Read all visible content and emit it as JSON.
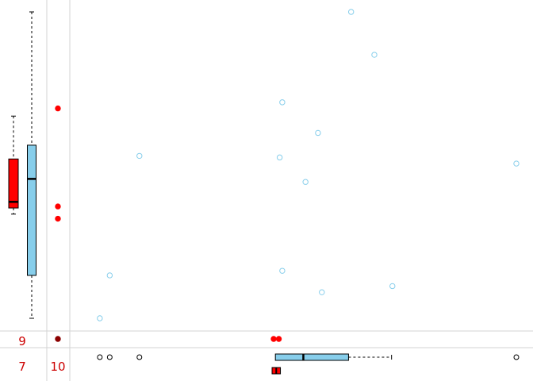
{
  "chart_data": {
    "type": "scatter",
    "title": "",
    "xlabel": "",
    "ylabel": "",
    "xlim": [
      0,
      100
    ],
    "ylim": [
      0,
      100
    ],
    "grid": false,
    "legend": "none",
    "colors": {
      "red": "#ff0000",
      "dark_red": "#8b0000",
      "sky": "#87ceeb",
      "divider": "#d3d3d3",
      "count_text": "#cc0000"
    },
    "series": [
      {
        "color": "#87ceeb",
        "shape": "open-circle",
        "points": [
          {
            "x": 61.6,
            "y": 100
          },
          {
            "x": 67.0,
            "y": 86.0
          },
          {
            "x": 45.6,
            "y": 70.5
          },
          {
            "x": 53.9,
            "y": 60.5
          },
          {
            "x": 12.4,
            "y": 53.0
          },
          {
            "x": 45.0,
            "y": 52.5
          },
          {
            "x": 51.0,
            "y": 44.5
          },
          {
            "x": 100,
            "y": 50.5
          },
          {
            "x": 5.5,
            "y": 14.0
          },
          {
            "x": 45.6,
            "y": 15.5
          },
          {
            "x": 54.8,
            "y": 8.5
          },
          {
            "x": 71.2,
            "y": 10.5
          },
          {
            "x": 3.2,
            "y": 0
          }
        ]
      },
      {
        "color": "#ff0000",
        "shape": "filled-circle",
        "points": [
          {
            "x": 43.6,
            "y": 0
          },
          {
            "x": 44.8,
            "y": 0
          }
        ]
      }
    ],
    "marginal_x": {
      "count_label": "9",
      "dark_point": {
        "y": 0
      },
      "strip_points": [
        3.2,
        5.5,
        12.4,
        45.6,
        51.0,
        53.9,
        54.8,
        61.6,
        67.0,
        71.2,
        100
      ],
      "boxplot": {
        "color": "#87ceeb",
        "q1": 44.0,
        "median": 50.5,
        "q3": 61.0,
        "whisker_low": 44.0,
        "whisker_high": 71.0
      }
    },
    "marginal_y": {
      "count_label": "10",
      "strip_points": [
        36.5,
        68.5,
        32.5
      ],
      "boxplot_sky": {
        "color": "#87ceeb",
        "q1": 14.0,
        "median": 45.5,
        "q3": 56.5,
        "whisker_low": 0,
        "whisker_high": 100
      },
      "boxplot_red": {
        "color": "#ff0000",
        "q1": 36.0,
        "median": 38.0,
        "q3": 52.0,
        "whisker_low": 34.0,
        "whisker_high": 66.0
      }
    },
    "corner": {
      "count_label": "7",
      "boxplot_red": {
        "color": "#ff0000",
        "q1": 43.6,
        "median": 44.2,
        "q3": 44.8
      }
    }
  }
}
